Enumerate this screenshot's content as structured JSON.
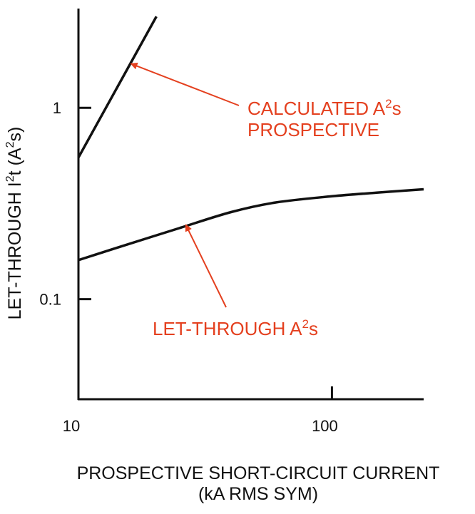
{
  "chart_data": {
    "type": "line",
    "x_scale": "log",
    "y_scale": "log",
    "xlim": [
      10,
      230
    ],
    "ylim": [
      0.03,
      3.3
    ],
    "x_ticks": [
      {
        "value": 10,
        "label": "10"
      },
      {
        "value": 100,
        "label": "100"
      }
    ],
    "y_ticks": [
      {
        "value": 1,
        "label": "1"
      },
      {
        "value": 0.1,
        "label": "0.1"
      }
    ],
    "xlabel": [
      "PROSPECTIVE SHORT-CIRCUIT CURRENT",
      "(kA RMS SYM)"
    ],
    "ylabel": {
      "prefix": "LET-THROUGH  I",
      "sup": "2",
      "suffix": "t (A",
      "sup2": "2",
      "end": "s)"
    },
    "grid": false,
    "series": [
      {
        "key": "calculated",
        "color": "#111111",
        "x": [
          10,
          20.3
        ],
        "y": [
          0.55,
          3.0
        ]
      },
      {
        "key": "let_through",
        "color": "#111111",
        "x": [
          10,
          15,
          25,
          40,
          60,
          100,
          150,
          230
        ],
        "y": [
          0.16,
          0.19,
          0.235,
          0.285,
          0.32,
          0.345,
          0.36,
          0.375
        ]
      }
    ],
    "annotations": [
      {
        "key": "calculated",
        "color": "#e4401f",
        "lines": [
          {
            "text": "CALCULATED A",
            "sup": "2",
            "after": "s"
          },
          {
            "text": "PROSPECTIVE",
            "sup": "",
            "after": ""
          }
        ],
        "arrow_to": {
          "x": 16.1,
          "y": 1.7
        }
      },
      {
        "key": "let_through",
        "color": "#e4401f",
        "lines": [
          {
            "text": "LET-THROUGH A",
            "sup": "2",
            "after": "s"
          }
        ],
        "arrow_to": {
          "x": 26.5,
          "y": 0.245
        }
      }
    ]
  }
}
